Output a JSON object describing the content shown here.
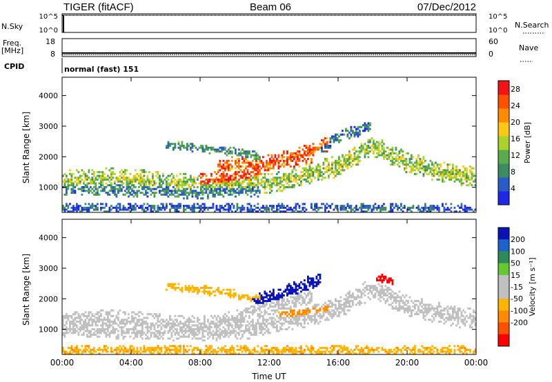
{
  "header": {
    "radar": "TIGER (fitACF)",
    "beam": "Beam 06",
    "date": "07/Dec/2012"
  },
  "status_panels": {
    "nsky_label": "N.Sky",
    "nsky_ticks": [
      "10^5",
      "10^0"
    ],
    "nsearch_label": "N.Search",
    "nsearch_ticks": [
      "10^5",
      "10^0"
    ],
    "freq_label_line1": "Freq.",
    "freq_label_line2": "[MHz]",
    "freq_ticks": [
      "18",
      "8"
    ],
    "nave_label": "Nave",
    "nave_ticks": [
      "60",
      "0"
    ],
    "cpid_label": "CPID",
    "cpid_value": "normal (fast) 151",
    "freq_level_mhz": 9.5,
    "nave_level": 2
  },
  "colors": {
    "power_scale": [
      "#1e28e6",
      "#2a5cc8",
      "#3c8c64",
      "#5aaa50",
      "#aad228",
      "#ffc814",
      "#ff8c00",
      "#ff5000",
      "#f01414"
    ],
    "velocity_scale": [
      "#ff0000",
      "#ff5000",
      "#ff8c00",
      "#ffb400",
      "#c0c0c0",
      "#c0c0c0",
      "#64c832",
      "#2e8b57",
      "#1c64c8",
      "#0a14b4"
    ]
  },
  "chart_data": [
    {
      "type": "heatmap",
      "title": "Power",
      "xlabel": "",
      "ylabel": "Slant Range [km]",
      "x_ticks": [
        "00:00",
        "04:00",
        "08:00",
        "12:00",
        "16:00",
        "20:00",
        "00:00"
      ],
      "x_range_hours": [
        0,
        24
      ],
      "y_ticks": [
        1000,
        2000,
        3000,
        4000
      ],
      "y_range_km": [
        180,
        4600
      ],
      "colorbar_label": "Power [dB]",
      "colorbar_ticks": [
        4,
        8,
        12,
        16,
        20,
        24,
        28
      ],
      "colorbar_range": [
        0,
        30
      ],
      "bands": [
        {
          "x": [
            0,
            3,
            6,
            9,
            11,
            12.5,
            14,
            16,
            18,
            20,
            22,
            24
          ],
          "y": [
            1200,
            1300,
            1150,
            1050,
            1100,
            1200,
            1400,
            1700,
            2350,
            1800,
            1500,
            1300
          ],
          "width": 350,
          "value": 14
        },
        {
          "x": [
            0,
            3,
            5,
            8,
            10,
            11.5
          ],
          "y": [
            1000,
            950,
            900,
            880,
            900,
            950
          ],
          "width": 250,
          "value": 8
        },
        {
          "x": [
            8,
            10,
            11.5,
            13,
            14.5
          ],
          "y": [
            1150,
            1300,
            1700,
            1900,
            2100
          ],
          "width": 300,
          "value": 26
        },
        {
          "x": [
            9,
            10.5,
            12,
            13.5,
            15.5
          ],
          "y": [
            1600,
            1850,
            1750,
            2000,
            2450
          ],
          "width": 250,
          "value": 24
        },
        {
          "x": [
            6,
            8,
            10,
            11.5
          ],
          "y": [
            2400,
            2300,
            2150,
            2000
          ],
          "width": 150,
          "value": 9
        },
        {
          "x": [
            15,
            16.5,
            18
          ],
          "y": [
            2300,
            2750,
            3000
          ],
          "width": 200,
          "value": 6
        },
        {
          "x": [
            0,
            6,
            12,
            18,
            24
          ],
          "y": [
            300,
            330,
            300,
            320,
            300
          ],
          "width": 160,
          "value": 5
        }
      ]
    },
    {
      "type": "heatmap",
      "title": "Velocity",
      "xlabel": "Time UT",
      "ylabel": "Slant Range [km]",
      "x_ticks": [
        "00:00",
        "04:00",
        "08:00",
        "12:00",
        "16:00",
        "20:00",
        "00:00"
      ],
      "x_range_hours": [
        0,
        24
      ],
      "y_ticks": [
        1000,
        2000,
        3000,
        4000
      ],
      "y_range_km": [
        180,
        4600
      ],
      "colorbar_label": "Velocity [m s⁻¹]",
      "colorbar_ticks": [
        200,
        100,
        50,
        15,
        -15,
        -50,
        -100,
        -200
      ],
      "bands": [
        {
          "x": [
            0,
            3,
            6,
            9,
            11,
            12.5,
            14,
            16,
            18,
            20,
            22,
            24
          ],
          "y": [
            1200,
            1300,
            1150,
            1050,
            1100,
            1200,
            1400,
            1700,
            2350,
            1800,
            1500,
            1300
          ],
          "width": 350,
          "value": 0
        },
        {
          "x": [
            0,
            3,
            5,
            8,
            10,
            11.5
          ],
          "y": [
            1000,
            950,
            900,
            880,
            900,
            950
          ],
          "width": 250,
          "value": 0
        },
        {
          "x": [
            8,
            10,
            11.5,
            13,
            14.5
          ],
          "y": [
            1150,
            1300,
            1700,
            1900,
            2100
          ],
          "width": 300,
          "value": 0
        },
        {
          "x": [
            11,
            12,
            13,
            14,
            15
          ],
          "y": [
            1950,
            2000,
            2200,
            2450,
            2600
          ],
          "width": 250,
          "value": 220
        },
        {
          "x": [
            18.2,
            18.7,
            19.2
          ],
          "y": [
            2700,
            2650,
            2550
          ],
          "width": 150,
          "value": -220
        },
        {
          "x": [
            6,
            8,
            10,
            11.5
          ],
          "y": [
            2400,
            2300,
            2150,
            2000
          ],
          "width": 150,
          "value": -30
        },
        {
          "x": [
            12.5,
            14,
            15.5
          ],
          "y": [
            1500,
            1550,
            1650
          ],
          "width": 120,
          "value": -60
        },
        {
          "x": [
            0,
            6,
            12,
            18,
            24
          ],
          "y": [
            300,
            330,
            300,
            320,
            300
          ],
          "width": 160,
          "value": -40
        }
      ]
    }
  ]
}
